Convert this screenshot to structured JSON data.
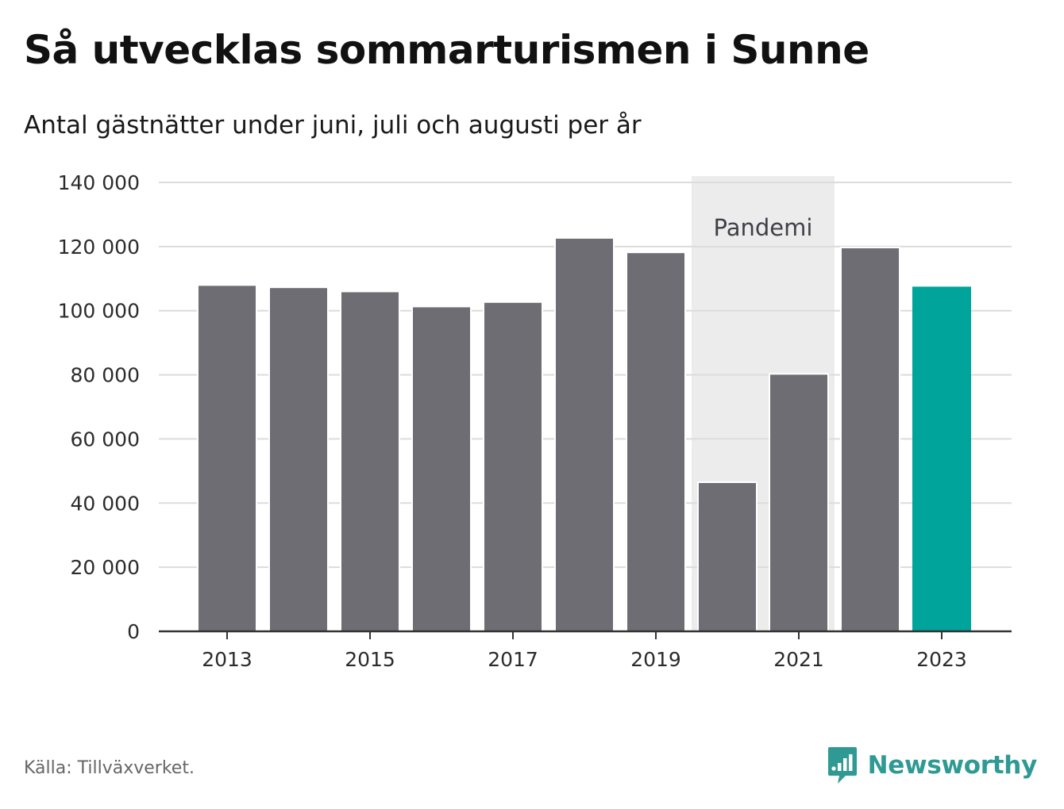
{
  "header": {
    "title": "Så utvecklas sommarturismen i Sunne",
    "subtitle": "Antal gästnätter under juni, juli och augusti per år"
  },
  "footer": {
    "source": "Källa: Tillväxverket.",
    "brand": "Newsworthy",
    "brand_icon": "bar-chart-speech-bubble-icon"
  },
  "colors": {
    "bar": "#6e6d73",
    "highlight": "#00a49a",
    "band": "#ececec",
    "grid": "#dcdcdc",
    "axis": "#333333",
    "brand": "#2f9a94"
  },
  "chart_data": {
    "type": "bar",
    "categories": [
      "2013",
      "2014",
      "2015",
      "2016",
      "2017",
      "2018",
      "2019",
      "2020",
      "2021",
      "2022",
      "2023"
    ],
    "values": [
      108000,
      107300,
      106000,
      101300,
      102700,
      122700,
      118200,
      46500,
      80300,
      119700,
      107500
    ],
    "highlight_category": "2023",
    "x_tick_labels": [
      "2013",
      "2015",
      "2017",
      "2019",
      "2021",
      "2023"
    ],
    "y_ticks": [
      0,
      20000,
      40000,
      60000,
      80000,
      100000,
      120000,
      140000
    ],
    "y_tick_labels": [
      "0",
      "20 000",
      "40 000",
      "60 000",
      "80 000",
      "100 000",
      "120 000",
      "140 000"
    ],
    "ylim": [
      0,
      140000
    ],
    "annotation": {
      "label": "Pandemi",
      "from": "2020",
      "to": "2021"
    },
    "grid": true,
    "legend": "none"
  }
}
